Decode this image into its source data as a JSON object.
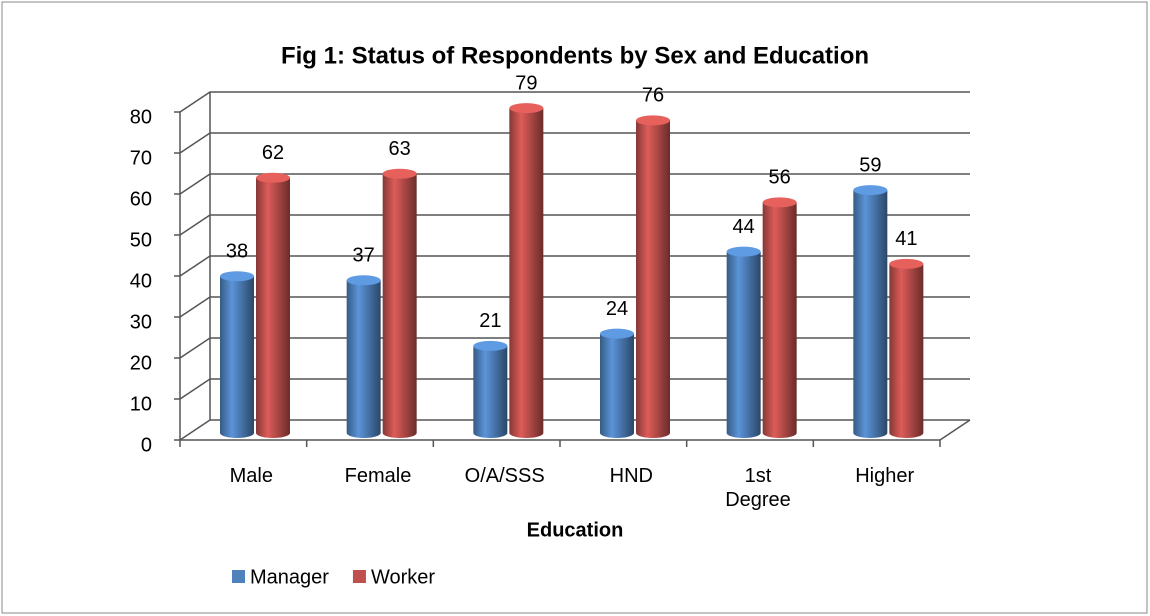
{
  "chart_data": {
    "type": "bar3d",
    "title": "Fig 1: Status of Respondents by Sex and Education",
    "x_label": "Education",
    "categories": [
      "Male",
      "Female",
      "O/A/SSS",
      "HND",
      "1st Degree",
      "Higher"
    ],
    "series": [
      {
        "name": "Manager",
        "color": "#4f81bd",
        "values": [
          38,
          37,
          21,
          24,
          44,
          59
        ]
      },
      {
        "name": "Worker",
        "color": "#c0504d",
        "values": [
          62,
          63,
          79,
          76,
          56,
          41
        ]
      }
    ],
    "ylim": [
      0,
      80
    ],
    "yticks": [
      0,
      10,
      20,
      30,
      40,
      50,
      60,
      70,
      80
    ],
    "grid": true,
    "legend": "bottom"
  }
}
